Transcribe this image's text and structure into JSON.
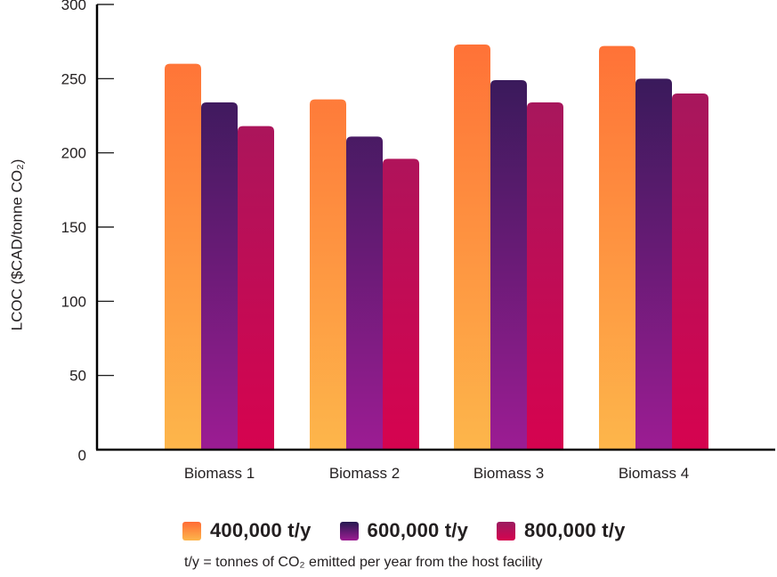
{
  "chart_data": {
    "type": "bar",
    "title": "",
    "xlabel": "",
    "ylabel": "LCOC ($CAD/tonne CO₂)",
    "ylim": [
      0,
      300
    ],
    "yticks": [
      0,
      50,
      100,
      150,
      200,
      250,
      300
    ],
    "ytick_labels": [
      "0",
      "50",
      "100",
      "150",
      "200",
      "250",
      "300"
    ],
    "grid": false,
    "legend_position": "bottom",
    "categories": [
      "Biomass 1",
      "Biomass 2",
      "Biomass 3",
      "Biomass 4"
    ],
    "series": [
      {
        "name": "400,000 t/y",
        "values": [
          260,
          236,
          273,
          272
        ],
        "color_top": "#FF6B35",
        "color_bottom": "#FDB64B"
      },
      {
        "name": "600,000 t/y",
        "values": [
          234,
          211,
          249,
          250
        ],
        "color_top": "#261A50",
        "color_bottom": "#9C1C93"
      },
      {
        "name": "800,000 t/y",
        "values": [
          218,
          196,
          234,
          240
        ],
        "color_top": "#9B1C60",
        "color_bottom": "#D6034F"
      }
    ],
    "footnote": "t/y = tonnes of CO₂ emitted per year from the host facility"
  }
}
